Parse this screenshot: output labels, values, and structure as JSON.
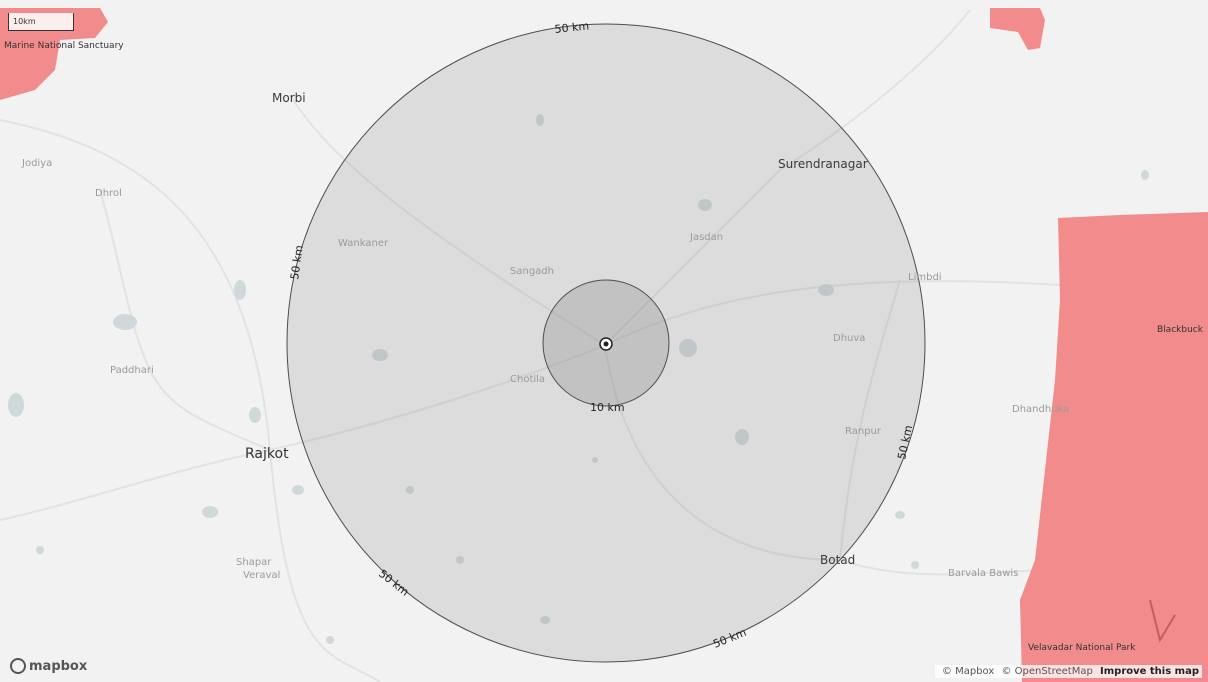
{
  "map": {
    "scale_label": "10km",
    "logo_text": "mapbox",
    "attribution": {
      "mapbox": "© Mapbox",
      "osm": "© OpenStreetMap",
      "improve": "Improve this map"
    },
    "rings": {
      "outer_label": "50 km",
      "inner_label": "10 km"
    },
    "places": {
      "morbi": "Morbi",
      "surendranagar": "Surendranagar",
      "rajkot": "Rajkot",
      "botad": "Botad",
      "wankaner": "Wankaner",
      "sangadh": "Sangadh",
      "chotila": "Chotila",
      "limbdi": "Limbdi",
      "dhuva": "Dhuva",
      "ranpur": "Ranpur",
      "paddhari": "Paddhari",
      "dhrol": "Dhrol",
      "jamnagar_hint": "Dhrol",
      "shapar": "Shapar",
      "veraval": "Veraval",
      "dhandhuka": "Dhandhuka",
      "barvala": "Barvala Bawis",
      "jodiya": "Jodiya",
      "sanctuary": "Marine National Sanctuary",
      "blackbuck": "Blackbuck",
      "velavadar": "Velavadar National Park",
      "jasdan": "Jasdan"
    },
    "colors": {
      "land": "#f2f2f2",
      "protected": "#f28b8b",
      "ring_fill": "#8c8c8c",
      "water": "#cfd8da",
      "road": "#e4e4e4"
    }
  }
}
